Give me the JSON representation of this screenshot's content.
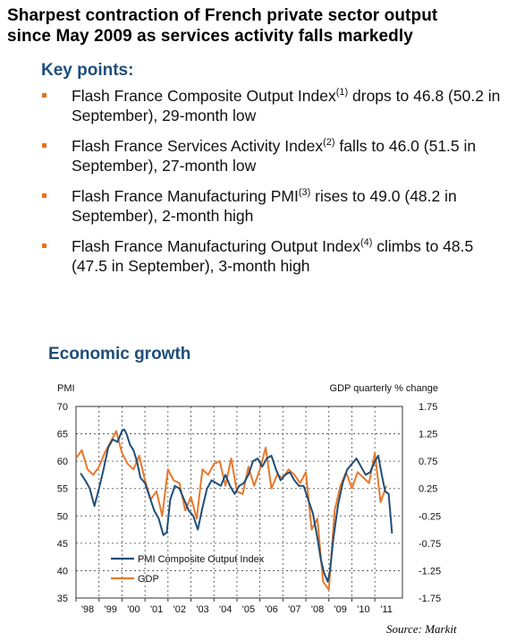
{
  "headline": {
    "line1": "Sharpest contraction of French private sector output",
    "line2": "since May 2009 as services activity falls markedly"
  },
  "key_points": {
    "title": "Key points:",
    "bullet_color": "#e8701a",
    "items": [
      {
        "pre": "Flash France Composite Output Index",
        "sup": "(1)",
        "post": " drops to 46.8 (50.2 in September), 29-month low"
      },
      {
        "pre": "Flash France Services Activity Index",
        "sup": "(2)",
        "post": " falls to 46.0 (51.5 in September), 27-month low"
      },
      {
        "pre": "Flash France Manufacturing PMI",
        "sup": "(3)",
        "post": " rises to 49.0 (48.2 in September), 2-month high"
      },
      {
        "pre": "Flash France Manufacturing Output Index",
        "sup": "(4)",
        "post": " climbs to 48.5 (47.5 in September), 3-month high"
      }
    ]
  },
  "chart_title": "Economic growth",
  "source": "Source:  Markit",
  "chart_data": {
    "type": "line",
    "left_axis_label": "PMI",
    "right_axis_label": "GDP quarterly % change",
    "left_ylim": [
      35,
      70
    ],
    "left_ticks": [
      "70",
      "65",
      "60",
      "55",
      "50",
      "45",
      "40",
      "35"
    ],
    "right_ylim": [
      -1.75,
      1.75
    ],
    "right_ticks": [
      "1.75",
      "1.25",
      "0.75",
      "0.25",
      "-0.25",
      "-0.75",
      "-1.25",
      "-1.75"
    ],
    "x_range": [
      1998,
      2012.2
    ],
    "x_ticks": [
      "'98",
      "'99",
      "'00",
      "'01",
      "'02",
      "'03",
      "'04",
      "'05",
      "'06",
      "'07",
      "'08",
      "'09",
      "'10",
      "'11"
    ],
    "grid": true,
    "legend_position": "bottom-left",
    "series": [
      {
        "name": "PMI Composite Output Index",
        "axis": "left",
        "color": "#1f4e79",
        "x": [
          1998.2,
          1998.4,
          1998.6,
          1998.8,
          1999.0,
          1999.2,
          1999.4,
          1999.6,
          1999.8,
          2000.0,
          2000.1,
          2000.2,
          2000.35,
          2000.5,
          2000.65,
          2000.8,
          2001.0,
          2001.2,
          2001.4,
          2001.6,
          2001.8,
          2001.95,
          2002.1,
          2002.3,
          2002.5,
          2002.7,
          2002.9,
          2003.1,
          2003.3,
          2003.5,
          2003.7,
          2003.9,
          2004.1,
          2004.3,
          2004.5,
          2004.7,
          2004.9,
          2005.1,
          2005.3,
          2005.5,
          2005.7,
          2005.9,
          2006.1,
          2006.3,
          2006.5,
          2006.7,
          2006.9,
          2007.1,
          2007.3,
          2007.5,
          2007.7,
          2007.9,
          2008.1,
          2008.3,
          2008.5,
          2008.65,
          2008.8,
          2008.95,
          2009.05,
          2009.2,
          2009.4,
          2009.6,
          2009.8,
          2010.0,
          2010.2,
          2010.4,
          2010.6,
          2010.8,
          2011.0,
          2011.15,
          2011.3,
          2011.45,
          2011.6,
          2011.75
        ],
        "values": [
          57.8,
          56.5,
          55.0,
          51.8,
          55.0,
          58.5,
          62.5,
          64.0,
          63.5,
          65.5,
          65.8,
          65.0,
          63.0,
          62.0,
          60.0,
          57.0,
          56.0,
          53.5,
          51.0,
          49.5,
          46.5,
          47.0,
          53.0,
          55.5,
          55.0,
          53.0,
          51.0,
          50.0,
          47.5,
          51.5,
          55.0,
          56.5,
          56.0,
          55.5,
          57.5,
          55.5,
          54.0,
          55.5,
          56.0,
          57.5,
          60.0,
          60.5,
          59.0,
          60.5,
          61.0,
          58.5,
          56.5,
          57.5,
          58.0,
          56.5,
          55.5,
          55.5,
          53.0,
          50.5,
          46.0,
          42.0,
          39.5,
          38.0,
          40.0,
          46.0,
          52.0,
          56.0,
          58.5,
          59.5,
          60.5,
          59.0,
          57.5,
          58.0,
          60.0,
          61.0,
          57.5,
          54.5,
          54.0,
          46.8
        ]
      },
      {
        "name": "GDP",
        "axis": "right",
        "color": "#e8782a",
        "x": [
          1998.0,
          1998.25,
          1998.5,
          1998.75,
          1999.0,
          1999.25,
          1999.5,
          1999.75,
          2000.0,
          2000.25,
          2000.5,
          2000.75,
          2001.0,
          2001.25,
          2001.5,
          2001.75,
          2002.0,
          2002.25,
          2002.5,
          2002.75,
          2003.0,
          2003.25,
          2003.5,
          2003.75,
          2004.0,
          2004.25,
          2004.5,
          2004.75,
          2005.0,
          2005.25,
          2005.5,
          2005.75,
          2006.0,
          2006.25,
          2006.5,
          2006.75,
          2007.0,
          2007.25,
          2007.5,
          2007.75,
          2008.0,
          2008.25,
          2008.5,
          2008.75,
          2009.0,
          2009.25,
          2009.5,
          2009.75,
          2010.0,
          2010.25,
          2010.5,
          2010.75,
          2011.0,
          2011.25,
          2011.5
        ],
        "values": [
          0.8,
          0.95,
          0.6,
          0.5,
          0.65,
          0.9,
          1.1,
          1.3,
          0.9,
          0.7,
          0.6,
          0.85,
          0.4,
          0.05,
          0.2,
          -0.25,
          0.6,
          0.4,
          0.35,
          -0.15,
          0.1,
          -0.3,
          0.6,
          0.5,
          0.7,
          0.75,
          0.3,
          0.8,
          0.2,
          0.15,
          0.65,
          0.3,
          0.6,
          1.0,
          0.25,
          0.5,
          0.45,
          0.6,
          0.5,
          0.35,
          0.55,
          -0.5,
          -0.3,
          -1.45,
          -1.6,
          -0.15,
          0.3,
          0.55,
          0.25,
          0.55,
          0.45,
          0.35,
          0.9,
          0.0,
          0.3
        ]
      }
    ]
  }
}
